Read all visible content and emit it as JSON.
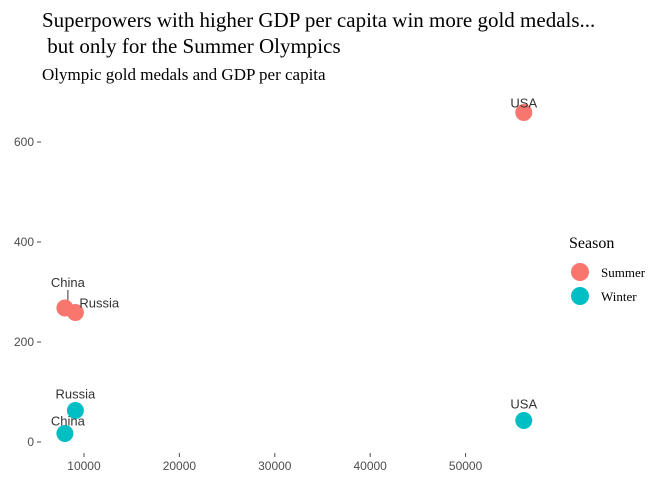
{
  "chart_data": {
    "type": "scatter",
    "title": "Superpowers with higher GDP per capita win more gold medals...",
    "title_line2": " but only for the Summer Olympics",
    "subtitle": "Olympic gold medals and GDP per capita",
    "xlabel": "",
    "ylabel": "",
    "xlim": [
      5600,
      57800
    ],
    "ylim": [
      -20,
      700
    ],
    "x_ticks": [
      10000,
      20000,
      30000,
      40000,
      50000
    ],
    "y_ticks": [
      0,
      200,
      400,
      600
    ],
    "grid": false,
    "legend": {
      "title": "Season",
      "placement": "right",
      "entries": [
        {
          "name": "Summer",
          "color": "#F8766D"
        },
        {
          "name": "Winter",
          "color": "#00BFC4"
        }
      ]
    },
    "series": [
      {
        "name": "Summer",
        "color": "#F8766D",
        "points": [
          {
            "label": "USA",
            "x": 56100,
            "y": 659
          },
          {
            "label": "China",
            "x": 8000,
            "y": 268
          },
          {
            "label": "Russia",
            "x": 9100,
            "y": 259
          }
        ]
      },
      {
        "name": "Winter",
        "color": "#00BFC4",
        "points": [
          {
            "label": "USA",
            "x": 56100,
            "y": 43
          },
          {
            "label": "Russia",
            "x": 9100,
            "y": 63
          },
          {
            "label": "China",
            "x": 8000,
            "y": 17
          }
        ]
      }
    ]
  }
}
